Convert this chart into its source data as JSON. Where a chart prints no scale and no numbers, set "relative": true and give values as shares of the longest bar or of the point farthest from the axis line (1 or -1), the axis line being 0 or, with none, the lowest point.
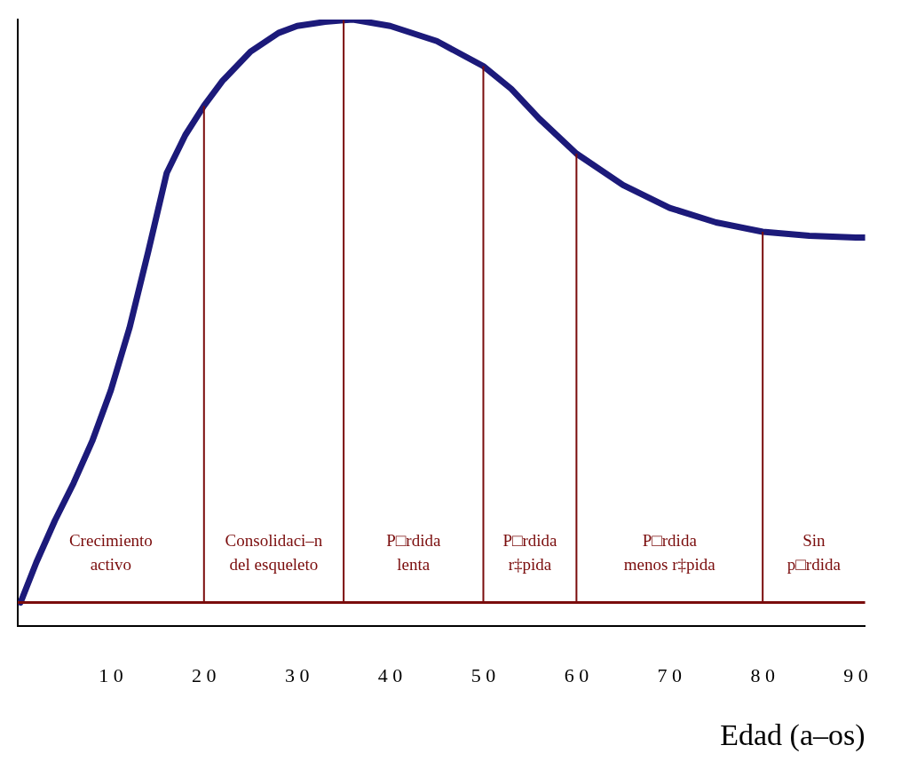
{
  "chart_data": {
    "type": "line",
    "relative": true,
    "xlabel": "Edad (a–os)",
    "tick_labels": "x",
    "grid": false,
    "legend": false,
    "marker": "none",
    "line_style": "solid",
    "x": [
      0.3,
      2,
      4,
      6,
      8,
      10,
      12,
      14,
      16,
      18,
      20,
      22,
      25,
      28,
      30,
      33,
      35,
      36,
      40,
      45,
      50,
      53,
      56,
      60,
      65,
      70,
      75,
      80,
      85,
      90,
      91
    ],
    "series": [
      {
        "color": "#1c1a7a",
        "values": [
          0,
          0.069,
          0.141,
          0.205,
          0.277,
          0.364,
          0.471,
          0.601,
          0.737,
          0.802,
          0.852,
          0.895,
          0.945,
          0.977,
          0.989,
          0.996,
          0.999,
          1,
          0.989,
          0.963,
          0.92,
          0.881,
          0.83,
          0.77,
          0.716,
          0.677,
          0.652,
          0.636,
          0.629,
          0.626,
          0.626
        ]
      }
    ],
    "xlim": [
      0,
      91
    ],
    "xticks": [
      10,
      20,
      30,
      40,
      50,
      60,
      70,
      80,
      90
    ],
    "ref_lines": [
      {
        "axis": "y",
        "value": 0,
        "color": "#7a0c0c"
      },
      {
        "axis": "x",
        "value": 20,
        "color": "#7a0c0c"
      },
      {
        "axis": "x",
        "value": 35,
        "color": "#7a0c0c"
      },
      {
        "axis": "x",
        "value": 50,
        "color": "#7a0c0c"
      },
      {
        "axis": "x",
        "value": 60,
        "color": "#7a0c0c"
      },
      {
        "axis": "x",
        "value": 80,
        "color": "#7a0c0c"
      }
    ],
    "annotations": [
      "Crecimiento\nactivo",
      "Consolidaci–n\ndel esqueleto",
      "P□rdida\nlenta",
      "P□rdida\nr‡pida",
      "P□rdida\nmenos r‡pida",
      "Sin\np□rdida"
    ]
  }
}
